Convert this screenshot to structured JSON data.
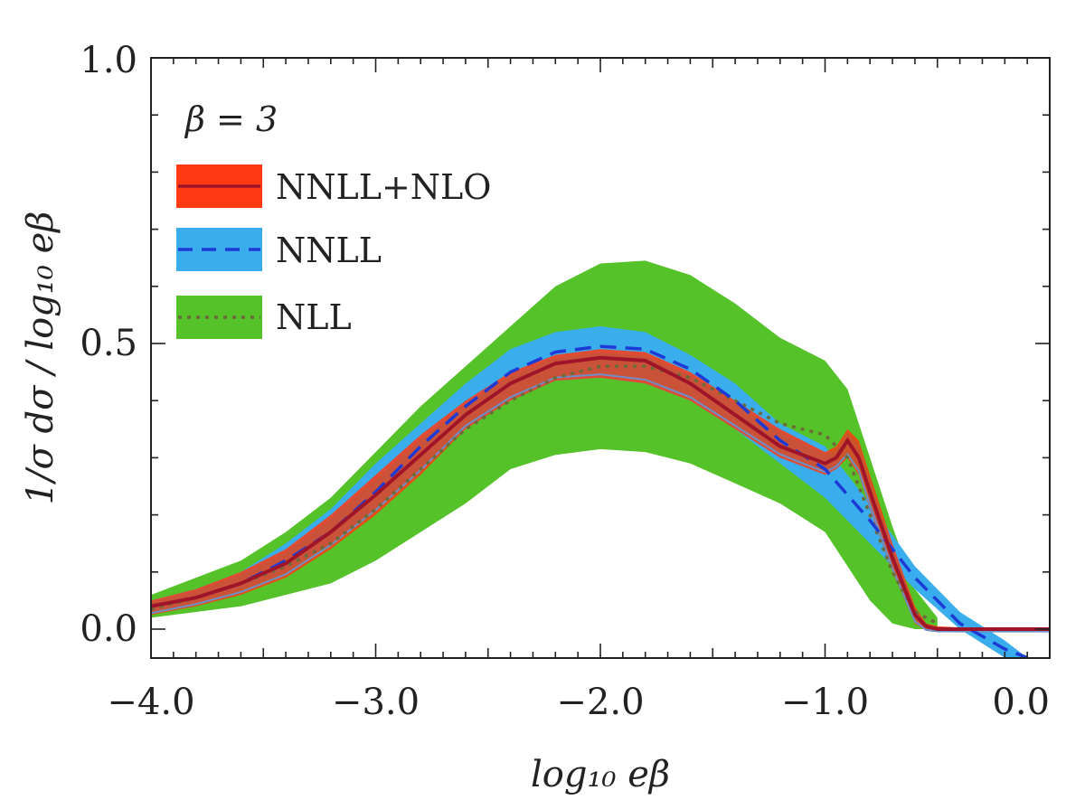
{
  "chart_data": {
    "type": "line",
    "title": "",
    "xlabel": "log₁₀ eβ",
    "ylabel": "1/σ dσ / log₁₀ eβ",
    "annotation": "β = 3",
    "xlim": [
      -4.0,
      0.0
    ],
    "ylim": [
      -0.05,
      1.0
    ],
    "x_ticks": [
      -4.0,
      -3.0,
      -2.0,
      -1.0,
      0.0
    ],
    "x_tick_labels": [
      "−4.0",
      "−3.0",
      "−2.0",
      "−1.0",
      "0.0"
    ],
    "y_ticks": [
      0.0,
      0.5,
      1.0
    ],
    "y_tick_labels": [
      "0.0",
      "0.5",
      "1.0"
    ],
    "legend": {
      "placement": "top-left",
      "entries": [
        {
          "label": "NNLL+NLO",
          "band_color": "#ff3a12",
          "line_color": "#a0142a",
          "line_style": "solid"
        },
        {
          "label": "NNLL",
          "band_color": "#3aaeed",
          "line_color": "#1e3ad6",
          "line_style": "dashed"
        },
        {
          "label": "NLL",
          "band_color": "#55c22a",
          "line_color": "#6b6b3a",
          "line_style": "dotted"
        }
      ]
    },
    "series": [
      {
        "name": "NLL",
        "x": [
          -4.0,
          -3.8,
          -3.6,
          -3.4,
          -3.2,
          -3.0,
          -2.8,
          -2.6,
          -2.4,
          -2.2,
          -2.0,
          -1.8,
          -1.6,
          -1.4,
          -1.2,
          -1.0,
          -0.9,
          -0.8,
          -0.7,
          -0.6,
          -0.5
        ],
        "upper": [
          0.06,
          0.09,
          0.12,
          0.17,
          0.23,
          0.31,
          0.39,
          0.46,
          0.53,
          0.6,
          0.64,
          0.645,
          0.62,
          0.57,
          0.51,
          0.47,
          0.42,
          0.3,
          0.18,
          0.07,
          0.02
        ],
        "lower": [
          0.02,
          0.03,
          0.04,
          0.06,
          0.08,
          0.12,
          0.17,
          0.22,
          0.28,
          0.305,
          0.315,
          0.31,
          0.29,
          0.255,
          0.22,
          0.17,
          0.11,
          0.05,
          0.01,
          0.0,
          0.0
        ],
        "central": [
          0.035,
          0.055,
          0.08,
          0.11,
          0.15,
          0.21,
          0.28,
          0.35,
          0.4,
          0.44,
          0.46,
          0.46,
          0.44,
          0.4,
          0.36,
          0.34,
          0.3,
          0.2,
          0.1,
          0.03,
          0.01
        ]
      },
      {
        "name": "NNLL",
        "x": [
          -4.0,
          -3.8,
          -3.6,
          -3.4,
          -3.2,
          -3.0,
          -2.8,
          -2.6,
          -2.4,
          -2.2,
          -2.0,
          -1.8,
          -1.6,
          -1.4,
          -1.2,
          -1.0,
          -0.8,
          -0.6,
          -0.4,
          -0.2,
          -0.1
        ],
        "upper": [
          0.05,
          0.07,
          0.1,
          0.15,
          0.21,
          0.29,
          0.36,
          0.43,
          0.49,
          0.52,
          0.53,
          0.52,
          0.48,
          0.43,
          0.36,
          0.32,
          0.22,
          0.11,
          0.03,
          -0.02,
          -0.05
        ],
        "lower": [
          0.03,
          0.045,
          0.07,
          0.1,
          0.15,
          0.21,
          0.28,
          0.35,
          0.4,
          0.435,
          0.44,
          0.43,
          0.4,
          0.35,
          0.29,
          0.23,
          0.15,
          0.07,
          0.0,
          -0.05,
          -0.05
        ],
        "central": [
          0.04,
          0.055,
          0.08,
          0.12,
          0.17,
          0.24,
          0.32,
          0.39,
          0.45,
          0.485,
          0.495,
          0.49,
          0.455,
          0.4,
          0.33,
          0.28,
          0.19,
          0.09,
          0.01,
          -0.035,
          -0.05
        ]
      },
      {
        "name": "NNLL+NLO",
        "x": [
          -4.0,
          -3.8,
          -3.6,
          -3.4,
          -3.2,
          -3.0,
          -2.8,
          -2.6,
          -2.4,
          -2.2,
          -2.0,
          -1.8,
          -1.6,
          -1.4,
          -1.2,
          -1.0,
          -0.95,
          -0.9,
          -0.85,
          -0.8,
          -0.7,
          -0.6,
          -0.55,
          -0.5,
          -0.4,
          -0.2,
          0.0
        ],
        "upper": [
          0.05,
          0.07,
          0.1,
          0.14,
          0.2,
          0.27,
          0.34,
          0.4,
          0.45,
          0.48,
          0.49,
          0.485,
          0.45,
          0.4,
          0.35,
          0.31,
          0.32,
          0.35,
          0.33,
          0.27,
          0.15,
          0.04,
          0.01,
          0.005,
          0.003,
          0.003,
          0.003
        ],
        "lower": [
          0.025,
          0.04,
          0.06,
          0.09,
          0.14,
          0.2,
          0.27,
          0.35,
          0.4,
          0.435,
          0.44,
          0.43,
          0.4,
          0.35,
          0.3,
          0.27,
          0.28,
          0.3,
          0.27,
          0.21,
          0.1,
          0.01,
          -0.003,
          -0.005,
          -0.005,
          -0.005,
          -0.005
        ],
        "central": [
          0.04,
          0.055,
          0.08,
          0.115,
          0.17,
          0.235,
          0.305,
          0.375,
          0.43,
          0.465,
          0.475,
          0.47,
          0.43,
          0.375,
          0.32,
          0.29,
          0.3,
          0.33,
          0.3,
          0.24,
          0.125,
          0.025,
          0.005,
          0.0,
          0.0,
          0.0,
          0.0
        ]
      }
    ]
  }
}
